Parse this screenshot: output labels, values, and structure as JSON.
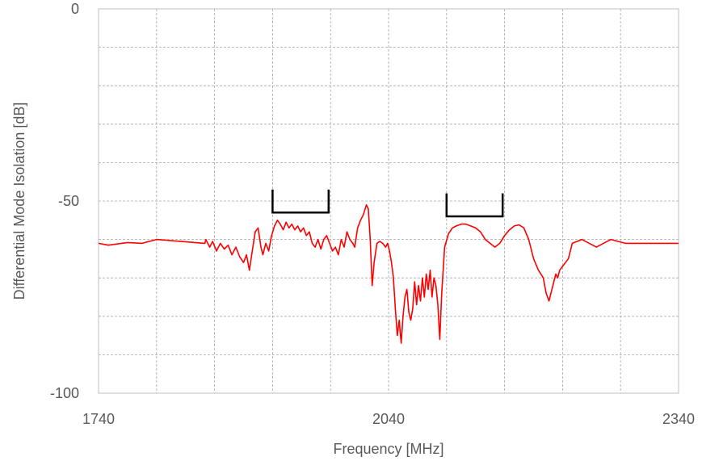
{
  "chart_data": {
    "type": "line",
    "title": "",
    "xlabel": "Frequency [MHz]",
    "ylabel": "Differential Mode Isolation  [dB]",
    "xlim": [
      1740,
      2340
    ],
    "ylim": [
      -100,
      0
    ],
    "x_tick_labels": [
      "1740",
      "2040",
      "2340"
    ],
    "x_tick_values": [
      1740,
      2040,
      2340
    ],
    "x_gridlines": [
      1740,
      1800,
      1860,
      1920,
      1980,
      2040,
      2100,
      2160,
      2220,
      2280,
      2340
    ],
    "y_tick_labels": [
      "0",
      "-50",
      "-100"
    ],
    "y_tick_values": [
      0,
      -50,
      -100
    ],
    "y_gridlines": [
      0,
      -10,
      -20,
      -30,
      -40,
      -50,
      -60,
      -70,
      -80,
      -90,
      -100
    ],
    "grid": true,
    "grid_style": "dashed",
    "series": [
      {
        "color": "#ff0000",
        "x": [
          1740,
          1750,
          1770,
          1785,
          1800,
          1850,
          1851,
          1855,
          1858,
          1862,
          1866,
          1870,
          1874,
          1878,
          1882,
          1886,
          1890,
          1893,
          1896,
          1899,
          1902,
          1905,
          1908,
          1910,
          1913,
          1916,
          1919,
          1922,
          1925,
          1928,
          1931,
          1934,
          1937,
          1940,
          1943,
          1946,
          1949,
          1952,
          1955,
          1958,
          1961,
          1964,
          1967,
          1970,
          1973,
          1976,
          1979,
          1982,
          1985,
          1988,
          1991,
          1994,
          1997,
          2000,
          2003,
          2005,
          2008,
          2011,
          2014,
          2017,
          2019,
          2021,
          2023,
          2025,
          2028,
          2031,
          2034,
          2037,
          2039,
          2041,
          2043,
          2045,
          2047,
          2049,
          2051,
          2053,
          2055,
          2057,
          2059,
          2061,
          2063,
          2065,
          2067,
          2069,
          2071,
          2073,
          2075,
          2077,
          2079,
          2081,
          2083,
          2085,
          2087,
          2089,
          2091,
          2093,
          2095,
          2098,
          2102,
          2106,
          2110,
          2115,
          2120,
          2125,
          2130,
          2135,
          2140,
          2145,
          2150,
          2155,
          2160,
          2165,
          2170,
          2175,
          2180,
          2185,
          2190,
          2195,
          2200,
          2203,
          2206,
          2209,
          2211,
          2213,
          2215,
          2217,
          2220,
          2223,
          2226,
          2230,
          2240,
          2255,
          2270,
          2285,
          2300,
          2320,
          2340
        ],
        "y": [
          -61,
          -61.5,
          -60.8,
          -61,
          -60,
          -61,
          -60,
          -62,
          -60.5,
          -63,
          -61,
          -62.5,
          -61.5,
          -64,
          -62,
          -64.5,
          -66,
          -64,
          -68,
          -63,
          -58,
          -57,
          -62,
          -64,
          -61,
          -63,
          -59,
          -56.5,
          -55,
          -56,
          -57.5,
          -55.5,
          -57,
          -56,
          -57.5,
          -56.5,
          -58,
          -57,
          -59,
          -58,
          -61,
          -62,
          -60,
          -62.5,
          -60,
          -59,
          -61,
          -63,
          -62,
          -64,
          -60,
          -62,
          -58,
          -60,
          -61,
          -62,
          -57,
          -55,
          -53.5,
          -51,
          -52,
          -60,
          -72,
          -66,
          -61,
          -60.5,
          -61,
          -62,
          -61,
          -63,
          -66,
          -70,
          -78,
          -85,
          -81,
          -87,
          -80,
          -75,
          -73,
          -79,
          -81,
          -78,
          -71,
          -77,
          -72,
          -76,
          -70,
          -75,
          -69,
          -73,
          -68,
          -75,
          -70,
          -72,
          -77,
          -86,
          -74,
          -62,
          -58.5,
          -57,
          -56.5,
          -56,
          -56,
          -56.5,
          -57,
          -58,
          -60,
          -61,
          -62,
          -61,
          -59,
          -57.5,
          -56.5,
          -56.2,
          -57,
          -60,
          -65,
          -68,
          -70,
          -74,
          -76,
          -73,
          -71,
          -69,
          -70,
          -68,
          -67,
          -66,
          -65,
          -61,
          -60,
          -62,
          -60,
          -61,
          -61,
          -61,
          -61
        ]
      }
    ],
    "annotations": [
      {
        "type": "bracket",
        "color": "#000000",
        "x_start": 1920,
        "x_end": 1978,
        "y_top": -47,
        "y_bottom": -53
      },
      {
        "type": "bracket",
        "color": "#000000",
        "x_start": 2100,
        "x_end": 2158,
        "y_top": -48,
        "y_bottom": -54
      }
    ]
  }
}
